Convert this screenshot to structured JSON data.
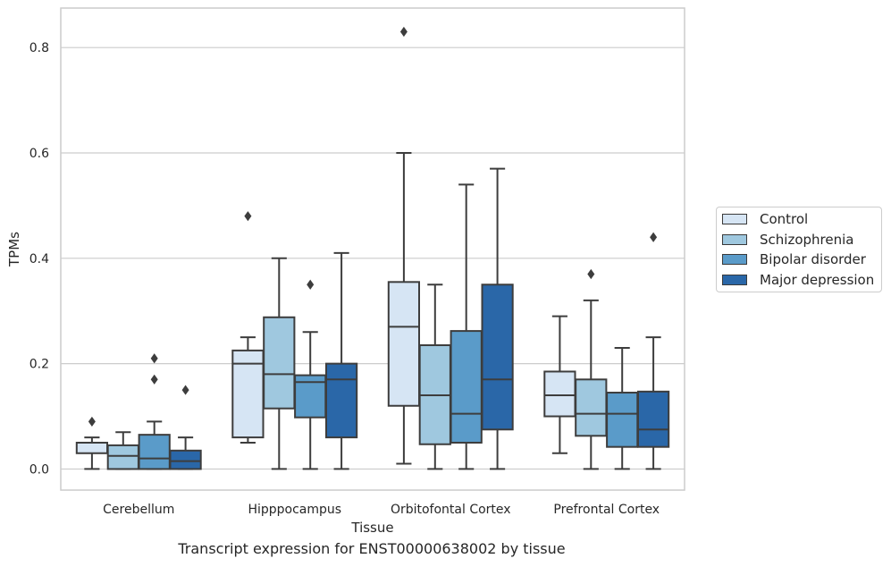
{
  "chart_data": {
    "type": "box",
    "xlabel": "Tissue",
    "ylabel": "TPMs",
    "caption": "Transcript expression for ENST00000638002 by tissue",
    "ylim": [
      -0.04,
      0.875
    ],
    "yticks": [
      "0.0",
      "0.2",
      "0.4",
      "0.6",
      "0.8"
    ],
    "grid": true,
    "legend_position": "right",
    "categories": [
      "Cerebellum",
      "Hipppocampus",
      "Orbitofontal Cortex",
      "Prefrontal Cortex"
    ],
    "series": [
      {
        "name": "Control",
        "color": "#d6e5f4",
        "boxes": [
          {
            "min": 0.0,
            "q1": 0.03,
            "median": 0.05,
            "q3": 0.05,
            "max": 0.06,
            "outliers": [
              0.09
            ]
          },
          {
            "min": 0.05,
            "q1": 0.06,
            "median": 0.2,
            "q3": 0.225,
            "max": 0.25,
            "outliers": [
              0.48
            ]
          },
          {
            "min": 0.01,
            "q1": 0.12,
            "median": 0.27,
            "q3": 0.355,
            "max": 0.6,
            "outliers": [
              0.83
            ]
          },
          {
            "min": 0.03,
            "q1": 0.1,
            "median": 0.14,
            "q3": 0.185,
            "max": 0.29,
            "outliers": []
          }
        ]
      },
      {
        "name": "Schizophrenia",
        "color": "#9fc8df",
        "boxes": [
          {
            "min": 0.0,
            "q1": 0.0,
            "median": 0.025,
            "q3": 0.045,
            "max": 0.07,
            "outliers": []
          },
          {
            "min": 0.0,
            "q1": 0.115,
            "median": 0.18,
            "q3": 0.288,
            "max": 0.4,
            "outliers": []
          },
          {
            "min": 0.0,
            "q1": 0.047,
            "median": 0.14,
            "q3": 0.235,
            "max": 0.35,
            "outliers": []
          },
          {
            "min": 0.0,
            "q1": 0.063,
            "median": 0.105,
            "q3": 0.17,
            "max": 0.32,
            "outliers": [
              0.37
            ]
          }
        ]
      },
      {
        "name": "Bipolar disorder",
        "color": "#5a9bc9",
        "boxes": [
          {
            "min": 0.0,
            "q1": 0.0,
            "median": 0.02,
            "q3": 0.065,
            "max": 0.09,
            "outliers": [
              0.17,
              0.21
            ]
          },
          {
            "min": 0.0,
            "q1": 0.098,
            "median": 0.165,
            "q3": 0.178,
            "max": 0.26,
            "outliers": [
              0.35
            ]
          },
          {
            "min": 0.0,
            "q1": 0.05,
            "median": 0.105,
            "q3": 0.262,
            "max": 0.54,
            "outliers": []
          },
          {
            "min": 0.0,
            "q1": 0.042,
            "median": 0.105,
            "q3": 0.145,
            "max": 0.23,
            "outliers": []
          }
        ]
      },
      {
        "name": "Major depression",
        "color": "#2a67a8",
        "boxes": [
          {
            "min": 0.0,
            "q1": 0.0,
            "median": 0.015,
            "q3": 0.035,
            "max": 0.06,
            "outliers": [
              0.15
            ]
          },
          {
            "min": 0.0,
            "q1": 0.06,
            "median": 0.17,
            "q3": 0.2,
            "max": 0.41,
            "outliers": []
          },
          {
            "min": 0.0,
            "q1": 0.075,
            "median": 0.17,
            "q3": 0.35,
            "max": 0.57,
            "outliers": []
          },
          {
            "min": 0.0,
            "q1": 0.042,
            "median": 0.075,
            "q3": 0.147,
            "max": 0.25,
            "outliers": [
              0.44
            ]
          }
        ]
      }
    ]
  }
}
